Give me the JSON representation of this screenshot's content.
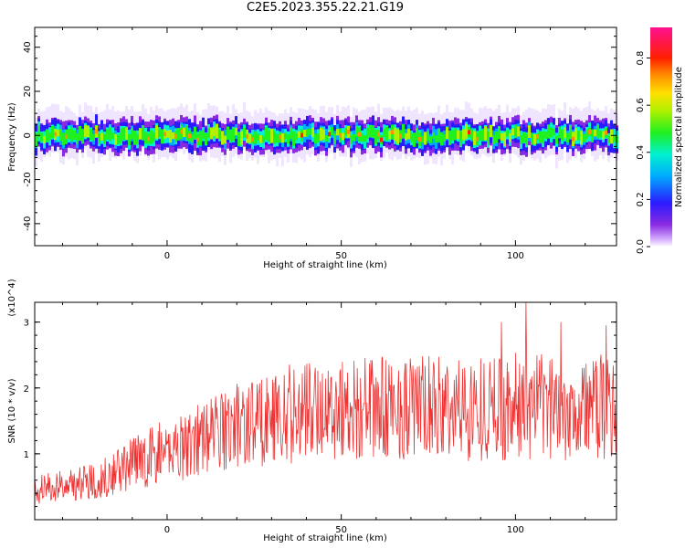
{
  "title": "C2E5.2023.355.22.21.G19",
  "chart_data": [
    {
      "type": "heatmap",
      "title": "C2E5.2023.355.22.21.G19",
      "xlabel": "Height of straight line (km)",
      "ylabel": "Frequency (Hz)",
      "xlim": [
        -38,
        129
      ],
      "ylim": [
        -50,
        49
      ],
      "xticks": [
        0,
        50,
        100
      ],
      "yticks": [
        -40,
        -20,
        0,
        20,
        40
      ],
      "colorbar": {
        "label": "Normalized spectral amplitude",
        "range": [
          0.0,
          0.93
        ],
        "ticks": [
          "0.0",
          "0.2",
          "0.4",
          "0.6",
          "0.8"
        ],
        "colormap": "rainbow (purple → blue → cyan → green → yellow → orange → red → magenta)"
      },
      "description_of_data": "Energy concentrated in a band around 0 Hz (about -10 to +12 Hz) across all heights, peak amplitudes ~0.7–0.9 near 0 Hz"
    },
    {
      "type": "line",
      "xlabel": "Height of straight line (km)",
      "ylabel": "SNR (10 * v/v)",
      "multiplier": "(x10^4)",
      "xlim": [
        -38,
        129
      ],
      "ylim": [
        0,
        3.3
      ],
      "xticks": [
        0,
        50,
        100
      ],
      "yticks": [
        1,
        2,
        3
      ],
      "color": "#ee3333",
      "trend": {
        "x": [
          -38,
          -20,
          -10,
          0,
          10,
          20,
          30,
          40,
          50,
          60,
          70,
          80,
          90,
          100,
          110,
          120,
          129
        ],
        "y": [
          0.45,
          0.6,
          0.85,
          1.05,
          1.25,
          1.45,
          1.55,
          1.65,
          1.7,
          1.68,
          1.7,
          1.68,
          1.7,
          1.72,
          1.7,
          1.7,
          1.7
        ]
      },
      "notable_peaks": [
        {
          "x": 103,
          "y": 3.3
        },
        {
          "x": 96,
          "y": 3.0
        },
        {
          "x": 113,
          "y": 3.0
        },
        {
          "x": 126,
          "y": 2.95
        }
      ]
    }
  ]
}
